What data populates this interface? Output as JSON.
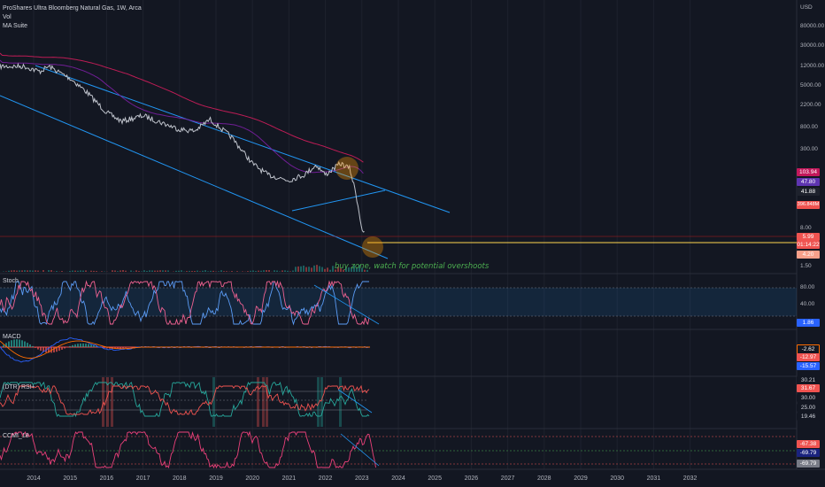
{
  "header": {
    "symbol_line": "ProShares Ultra Bloomberg Natural Gas, 1W, Arca",
    "vol_label": "Vol",
    "ma_label": "MA Suite"
  },
  "price_axis": {
    "currency": "USD",
    "ticks": [
      "80000.00",
      "30000.00",
      "12000.00",
      "5000.00",
      "2200.00",
      "800.00",
      "300.00",
      "8.00",
      "1.50"
    ]
  },
  "price_badges": [
    {
      "text": "103.94",
      "color": "#c2185b"
    },
    {
      "text": "47.80",
      "color": "#5e35b1"
    },
    {
      "text": "41.88",
      "color": "#1e222d"
    },
    {
      "text": "396.848M",
      "color": "#ef5350"
    },
    {
      "text": "5.99",
      "color": "#ef5350"
    },
    {
      "text": "01:14:22",
      "color": "#ef5350"
    },
    {
      "text": "4.20",
      "color": "#f7a08a"
    }
  ],
  "annotation": "buy zone, watch for potential overshoots",
  "panes": {
    "stoch": {
      "label": "Stoch",
      "ticks": [
        "80.00",
        "40.00"
      ],
      "badge": "1.86"
    },
    "macd": {
      "label": "MACD",
      "badges": [
        "-2.62",
        "-12.97",
        "-15.57"
      ]
    },
    "rsi": {
      "label": "(DTR) RSI+",
      "ticks": [
        "30.21",
        "31.67",
        "30.00",
        "25.00",
        "19.46"
      ]
    },
    "cci": {
      "label": "CCMI_18",
      "badges": [
        "-67.38",
        "-69.79",
        "-69.79"
      ]
    }
  },
  "x_axis": {
    "labels": [
      "2014",
      "2015",
      "2016",
      "2017",
      "2018",
      "2019",
      "2020",
      "2021",
      "2022",
      "2023",
      "2024",
      "2025",
      "2026",
      "2027",
      "2028",
      "2029",
      "2030",
      "2031",
      "2032"
    ]
  },
  "chart_data": {
    "type": "line",
    "title": "ProShares Ultra Bloomberg Natural Gas, 1W, Arca",
    "yscale": "log",
    "ylabel": "USD",
    "x": [
      "2013-10",
      "2014-03",
      "2014-06",
      "2015-01",
      "2015-06",
      "2016-01",
      "2016-06",
      "2017-01",
      "2017-06",
      "2018-01",
      "2018-06",
      "2018-11",
      "2019-06",
      "2020-01",
      "2020-06",
      "2021-01",
      "2021-06",
      "2021-10",
      "2022-01",
      "2022-06",
      "2022-09",
      "2022-11",
      "2023-01",
      "2023-02"
    ],
    "series": [
      {
        "name": "Price",
        "values": [
          12000,
          9500,
          12000,
          7000,
          4000,
          1500,
          1000,
          1300,
          1000,
          700,
          650,
          1100,
          500,
          150,
          90,
          70,
          90,
          140,
          90,
          150,
          120,
          40,
          8,
          5.99
        ]
      }
    ],
    "levels": {
      "horizontal_line": 4.2
    }
  }
}
